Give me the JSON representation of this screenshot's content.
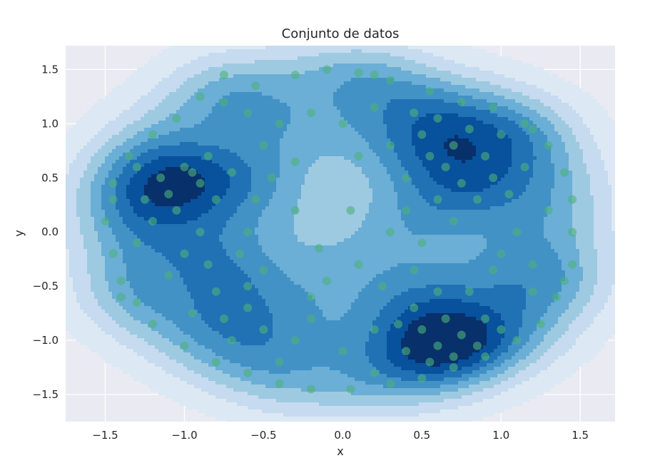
{
  "chart_data": {
    "type": "scatter",
    "title": "Conjunto de datos",
    "xlabel": "x",
    "ylabel": "y",
    "xlim": [
      -1.75,
      1.72
    ],
    "ylim": [
      -1.75,
      1.72
    ],
    "x_ticks": [
      -1.5,
      -1.0,
      -0.5,
      0.0,
      0.5,
      1.0,
      1.5
    ],
    "y_ticks": [
      -1.5,
      -1.0,
      -0.5,
      0.0,
      0.5,
      1.0,
      1.5
    ],
    "x_tick_labels": [
      "−1.5",
      "−1.0",
      "−0.5",
      "0.0",
      "0.5",
      "1.0",
      "1.5"
    ],
    "y_tick_labels": [
      "−1.5",
      "−1.0",
      "−0.5",
      "0.0",
      "0.5",
      "1.0",
      "1.5"
    ],
    "grid": true,
    "background_color": "#eaeaf2",
    "point_color": "#4cb07a",
    "contour_colors": [
      "#dce9f4",
      "#c6dbef",
      "#9ecae1",
      "#6baed6",
      "#4292c6",
      "#2171b5",
      "#08519c",
      "#08306b"
    ],
    "contour": "kde",
    "series": [
      {
        "points": [
          [
            -0.75,
            1.45
          ],
          [
            -0.55,
            1.35
          ],
          [
            -0.3,
            1.45
          ],
          [
            -0.1,
            1.5
          ],
          [
            0.1,
            1.47
          ],
          [
            0.3,
            1.4
          ],
          [
            0.55,
            1.3
          ],
          [
            0.75,
            1.2
          ],
          [
            -0.9,
            1.25
          ],
          [
            -1.05,
            1.05
          ],
          [
            -1.2,
            0.9
          ],
          [
            -1.35,
            0.7
          ],
          [
            -1.45,
            0.45
          ],
          [
            -1.5,
            0.1
          ],
          [
            -1.45,
            -0.2
          ],
          [
            -1.4,
            -0.45
          ],
          [
            -1.3,
            -0.65
          ],
          [
            -1.2,
            -0.85
          ],
          [
            -1.0,
            -1.05
          ],
          [
            -0.8,
            -1.2
          ],
          [
            -0.6,
            -1.3
          ],
          [
            -0.4,
            -1.4
          ],
          [
            -0.2,
            -1.45
          ],
          [
            0.05,
            -1.45
          ],
          [
            0.3,
            -1.4
          ],
          [
            0.5,
            -1.35
          ],
          [
            0.7,
            -1.25
          ],
          [
            0.9,
            -1.15
          ],
          [
            1.1,
            -1.0
          ],
          [
            1.25,
            -0.85
          ],
          [
            1.35,
            -0.6
          ],
          [
            1.45,
            -0.3
          ],
          [
            1.45,
            0.0
          ],
          [
            1.45,
            0.3
          ],
          [
            1.4,
            0.55
          ],
          [
            1.3,
            0.8
          ],
          [
            1.15,
            1.0
          ],
          [
            0.95,
            1.15
          ],
          [
            -1.0,
            0.6
          ],
          [
            -0.9,
            0.45
          ],
          [
            -1.1,
            0.35
          ],
          [
            -0.85,
            0.7
          ],
          [
            -1.05,
            0.2
          ],
          [
            -0.95,
            0.55
          ],
          [
            -0.8,
            0.3
          ],
          [
            -1.15,
            0.5
          ],
          [
            -0.7,
            0.55
          ],
          [
            -1.2,
            0.1
          ],
          [
            -0.9,
            0.0
          ],
          [
            -1.0,
            -0.2
          ],
          [
            -1.3,
            -0.1
          ],
          [
            -1.1,
            -0.4
          ],
          [
            -0.85,
            -0.3
          ],
          [
            -1.25,
            0.3
          ],
          [
            0.5,
            0.9
          ],
          [
            0.6,
            1.05
          ],
          [
            0.7,
            0.8
          ],
          [
            0.8,
            0.95
          ],
          [
            0.65,
            0.6
          ],
          [
            0.9,
            0.7
          ],
          [
            0.55,
            0.7
          ],
          [
            0.75,
            0.45
          ],
          [
            0.95,
            0.5
          ],
          [
            0.45,
            1.1
          ],
          [
            0.85,
            0.3
          ],
          [
            1.0,
            0.9
          ],
          [
            0.4,
            0.5
          ],
          [
            0.6,
            0.3
          ],
          [
            1.05,
            0.35
          ],
          [
            0.3,
            0.8
          ],
          [
            0.5,
            -0.9
          ],
          [
            0.6,
            -1.05
          ],
          [
            0.75,
            -0.95
          ],
          [
            0.4,
            -1.1
          ],
          [
            0.65,
            -0.8
          ],
          [
            0.85,
            -1.05
          ],
          [
            0.55,
            -1.2
          ],
          [
            0.35,
            -0.85
          ],
          [
            0.9,
            -0.8
          ],
          [
            0.7,
            -1.15
          ],
          [
            1.0,
            -0.9
          ],
          [
            0.45,
            -0.7
          ],
          [
            -0.4,
            1.0
          ],
          [
            -0.2,
            1.1
          ],
          [
            0.0,
            1.0
          ],
          [
            0.2,
            1.15
          ],
          [
            -0.5,
            0.8
          ],
          [
            -0.3,
            0.65
          ],
          [
            0.1,
            0.7
          ],
          [
            -0.6,
            1.1
          ],
          [
            -0.5,
            -0.9
          ],
          [
            -0.3,
            -1.0
          ],
          [
            -0.6,
            -0.7
          ],
          [
            -0.2,
            -0.8
          ],
          [
            0.0,
            -1.1
          ],
          [
            0.2,
            -0.9
          ],
          [
            -0.7,
            -1.0
          ],
          [
            -0.4,
            -1.2
          ],
          [
            1.2,
            -0.3
          ],
          [
            1.1,
            0.0
          ],
          [
            1.3,
            0.2
          ],
          [
            1.2,
            -0.55
          ],
          [
            1.0,
            -0.2
          ],
          [
            1.15,
            0.6
          ],
          [
            -0.55,
            0.3
          ],
          [
            -0.6,
            0.0
          ],
          [
            -0.5,
            -0.35
          ],
          [
            -0.45,
            0.5
          ],
          [
            -0.65,
            -0.2
          ],
          [
            0.4,
            0.2
          ],
          [
            0.45,
            -0.35
          ],
          [
            0.5,
            -0.1
          ],
          [
            -0.15,
            -0.15
          ],
          [
            -0.1,
            -0.45
          ],
          [
            0.05,
            0.2
          ],
          [
            0.1,
            -0.3
          ],
          [
            0.25,
            -0.5
          ],
          [
            -0.3,
            0.2
          ],
          [
            0.3,
            0.0
          ],
          [
            -0.2,
            -0.6
          ],
          [
            -1.4,
            -0.6
          ],
          [
            -1.45,
            0.3
          ],
          [
            -1.3,
            0.6
          ],
          [
            -0.75,
            1.2
          ],
          [
            0.2,
            1.45
          ],
          [
            1.2,
            0.95
          ],
          [
            1.4,
            -0.45
          ],
          [
            0.2,
            -1.3
          ],
          [
            -0.8,
            -0.55
          ],
          [
            -0.75,
            -0.8
          ],
          [
            -0.95,
            -0.75
          ],
          [
            -0.6,
            -0.5
          ],
          [
            0.8,
            -0.55
          ],
          [
            0.95,
            -0.35
          ],
          [
            0.7,
            0.1
          ],
          [
            0.6,
            -0.55
          ]
        ]
      }
    ]
  }
}
